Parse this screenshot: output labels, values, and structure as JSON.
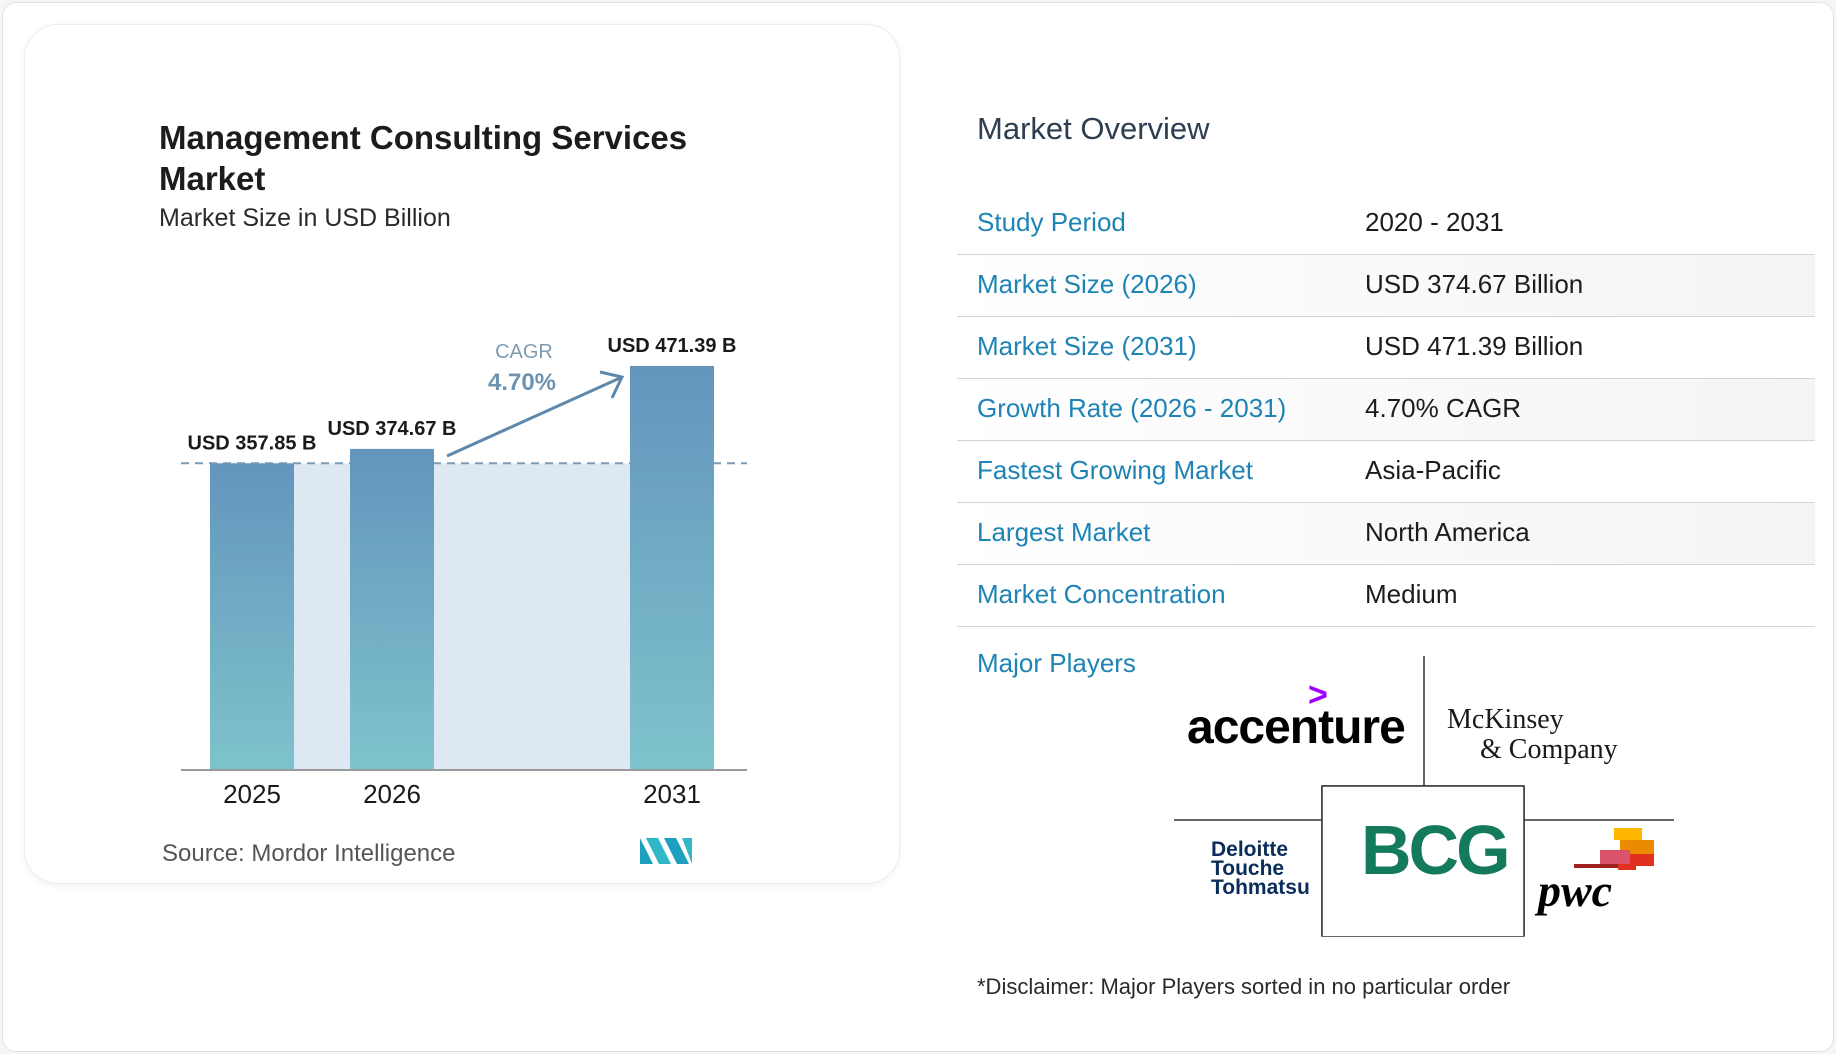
{
  "chart_data": {
    "type": "bar",
    "title": "Management Consulting Services Market",
    "subtitle": "Market Size in USD Billion",
    "categories": [
      "2025",
      "2026",
      "2031"
    ],
    "values": [
      357.85,
      374.67,
      471.39
    ],
    "value_labels": [
      "USD 357.85 B",
      "USD 374.67 B",
      "USD 471.39 B"
    ],
    "cagr_label": "CAGR",
    "cagr_value": "4.70%",
    "source_label": "Source:",
    "source_name": "Mordor Intelligence",
    "bar_color_top": "#6395bd",
    "bar_color_bottom": "#7ec3cb"
  },
  "overview": {
    "title": "Market Overview",
    "rows": [
      {
        "label": "Study Period",
        "value": "2020 - 2031"
      },
      {
        "label": "Market Size (2026)",
        "value": "USD 374.67 Billion"
      },
      {
        "label": "Market Size (2031)",
        "value": "USD 471.39 Billion"
      },
      {
        "label": "Growth Rate (2026 - 2031)",
        "value": "4.70% CAGR"
      },
      {
        "label": "Fastest Growing Market",
        "value": "Asia-Pacific"
      },
      {
        "label": "Largest Market",
        "value": "North America"
      },
      {
        "label": "Market Concentration",
        "value": "Medium"
      }
    ],
    "players_title": "Major Players",
    "players": {
      "accenture": "accenture",
      "accenture_mark": ">",
      "mckinsey_line1": "McKinsey",
      "mckinsey_line2": "& Company",
      "deloitte": "Deloitte Touche Tohmatsu",
      "bcg": "BCG",
      "pwc": "pwc"
    },
    "disclaimer": "*Disclaimer: Major Players sorted in no particular order"
  },
  "colors": {
    "label_blue": "#1d84b5",
    "pwc_orange": "#e0301e",
    "bcg_green": "#147a5c",
    "accenture_purple": "#a100ff"
  }
}
